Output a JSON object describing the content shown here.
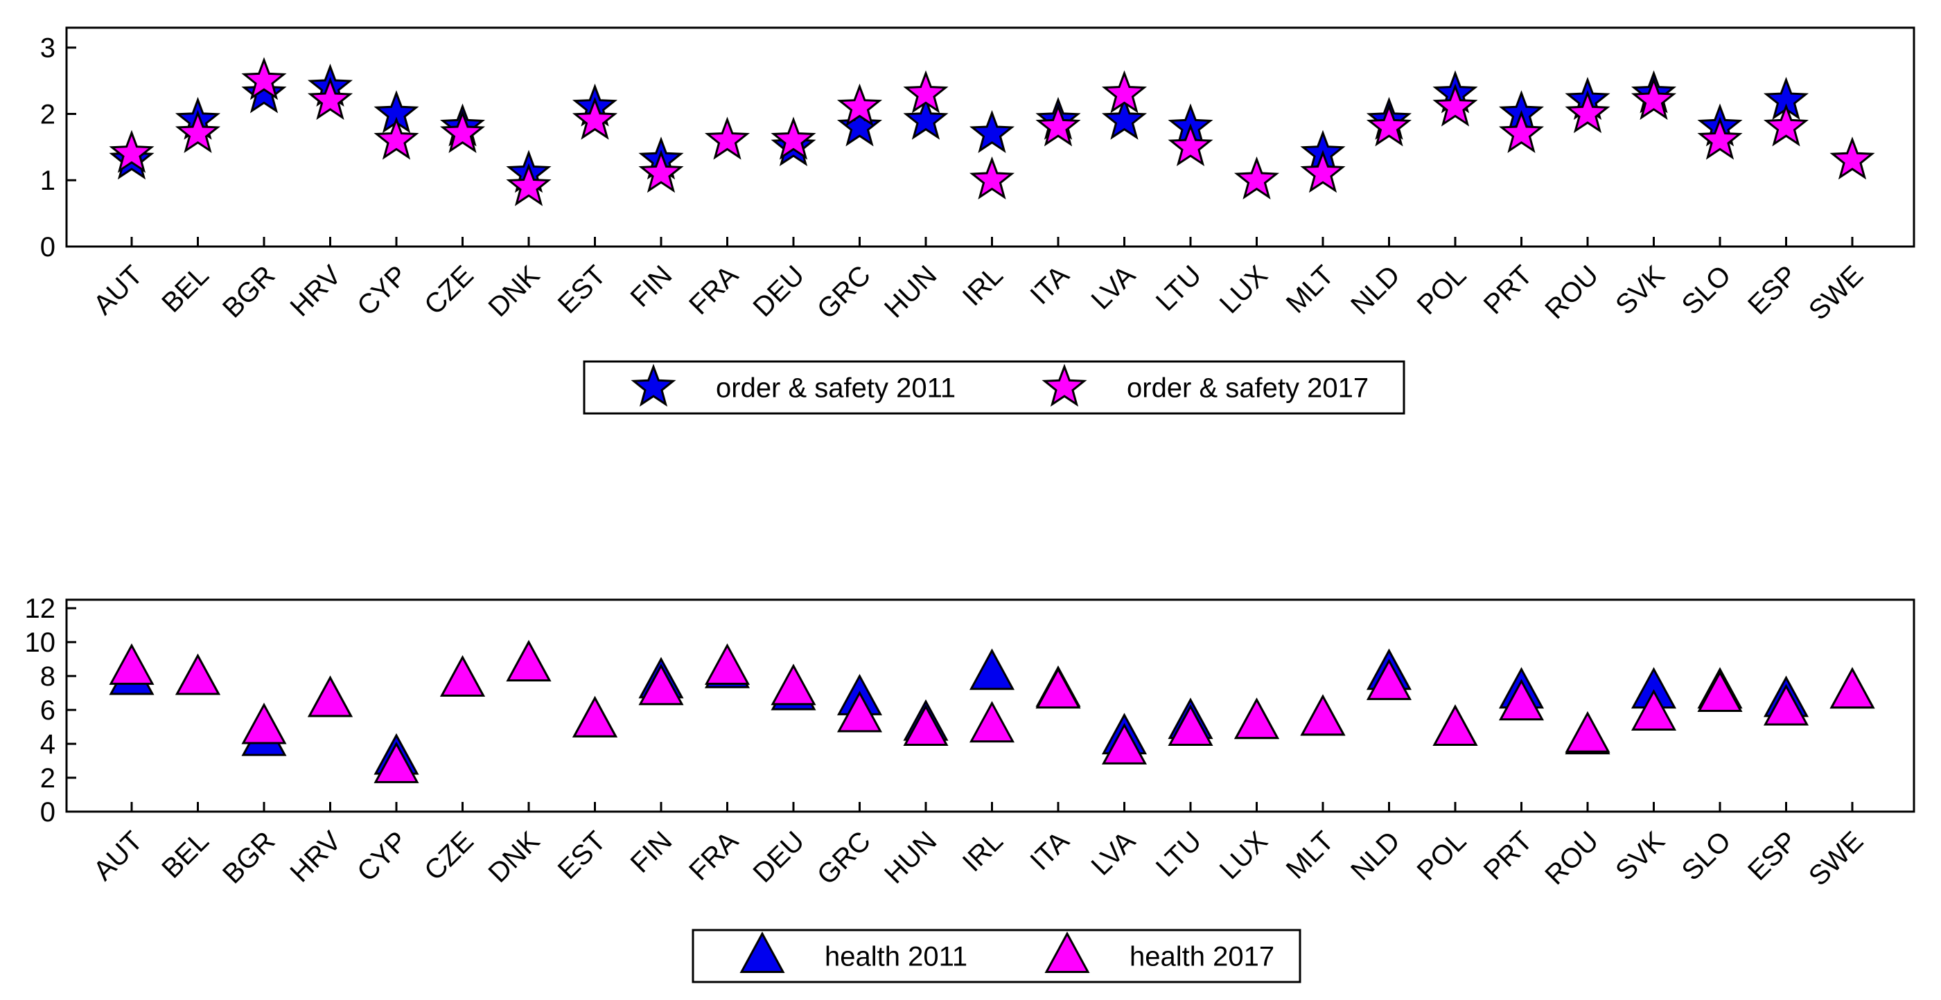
{
  "chart_data": [
    {
      "type": "scatter",
      "marker": "star",
      "ylim": [
        0,
        3.3
      ],
      "yticks": [
        0,
        1,
        2,
        3
      ],
      "grid": false,
      "legend_placement": "bottom-center",
      "categories": [
        "AUT",
        "BEL",
        "BGR",
        "HRV",
        "CYP",
        "CZE",
        "DNK",
        "EST",
        "FIN",
        "FRA",
        "DEU",
        "GRC",
        "HUN",
        "IRL",
        "ITA",
        "LVA",
        "LTU",
        "LUX",
        "MLT",
        "NLD",
        "POL",
        "PRT",
        "ROU",
        "SVK",
        "SLO",
        "ESP",
        "SWE"
      ],
      "series": [
        {
          "name": "order & safety 2011",
          "color": "#0000ee",
          "values": [
            1.3,
            1.9,
            2.3,
            2.4,
            2.0,
            1.8,
            1.1,
            2.1,
            1.3,
            null,
            1.5,
            1.8,
            1.9,
            1.7,
            1.9,
            1.9,
            1.8,
            null,
            1.4,
            1.9,
            2.3,
            2.0,
            2.2,
            2.3,
            1.8,
            2.2,
            null
          ]
        },
        {
          "name": "order & safety 2017",
          "color": "#ff00ff",
          "values": [
            1.4,
            1.7,
            2.5,
            2.2,
            1.6,
            1.7,
            0.9,
            1.9,
            1.1,
            1.6,
            1.6,
            2.1,
            2.3,
            1.0,
            1.8,
            2.3,
            1.5,
            1.0,
            1.1,
            1.8,
            2.1,
            1.7,
            2.0,
            2.2,
            1.6,
            1.8,
            1.3
          ]
        }
      ]
    },
    {
      "type": "scatter",
      "marker": "triangle",
      "ylim": [
        0,
        12.5
      ],
      "yticks": [
        0,
        2,
        4,
        6,
        8,
        10,
        12
      ],
      "grid": false,
      "legend_placement": "bottom-center",
      "categories": [
        "AUT",
        "BEL",
        "BGR",
        "HRV",
        "CYP",
        "CZE",
        "DNK",
        "EST",
        "FIN",
        "FRA",
        "DEU",
        "GRC",
        "HUN",
        "IRL",
        "ITA",
        "LVA",
        "LTU",
        "LUX",
        "MLT",
        "NLD",
        "POL",
        "PRT",
        "ROU",
        "SVK",
        "SLO",
        "ESP",
        "SWE"
      ],
      "series": [
        {
          "name": "health 2011",
          "color": "#0000ee",
          "values": [
            7.8,
            7.8,
            4.2,
            6.5,
            3.1,
            7.7,
            8.6,
            5.3,
            7.6,
            8.2,
            6.9,
            6.6,
            5.1,
            8.1,
            7.1,
            4.3,
            5.2,
            5.2,
            5.4,
            8.1,
            4.8,
            7.0,
            4.3,
            7.0,
            7.0,
            6.5,
            7.0
          ]
        },
        {
          "name": "health 2017",
          "color": "#ff00ff",
          "values": [
            8.4,
            7.8,
            4.9,
            6.5,
            2.6,
            7.7,
            8.6,
            5.3,
            7.2,
            8.4,
            7.2,
            5.6,
            4.8,
            5.0,
            7.0,
            3.7,
            4.8,
            5.2,
            5.4,
            7.5,
            4.8,
            6.3,
            4.4,
            5.7,
            6.8,
            6.0,
            7.0
          ]
        }
      ]
    }
  ]
}
